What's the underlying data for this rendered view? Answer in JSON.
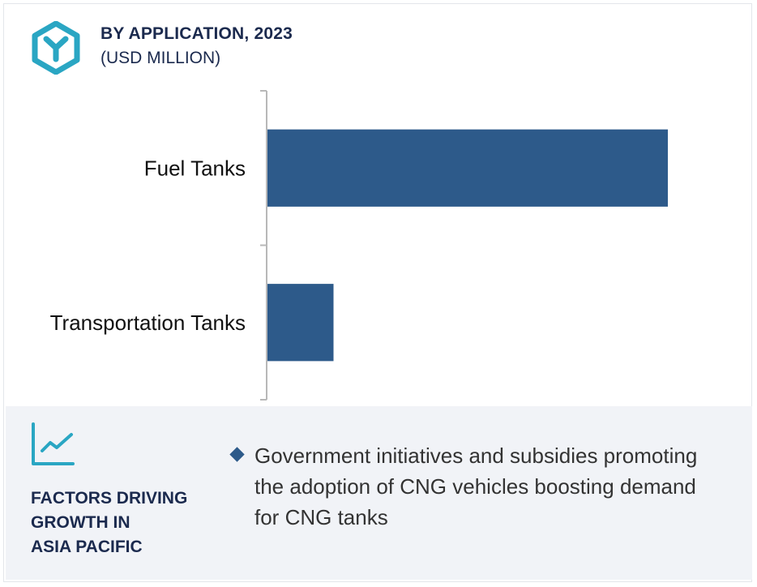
{
  "header": {
    "title": "BY APPLICATION, 2023",
    "subtitle": "(USD MILLION)",
    "logo_icon": "hexagon-y-logo-icon",
    "accent_color": "#2aa6c3"
  },
  "chart_data": {
    "type": "bar",
    "orientation": "horizontal",
    "categories": [
      "Fuel Tanks",
      "Transportation Tanks"
    ],
    "values": [
      6,
      1
    ],
    "title": "BY APPLICATION, 2023",
    "subtitle": "(USD MILLION)",
    "xlabel": "",
    "ylabel": "",
    "xlim": [
      0,
      6
    ],
    "bar_color": "#2d5a8a",
    "grid": false,
    "legend": "none"
  },
  "factors": {
    "icon": "trend-line-icon",
    "heading_lines": [
      "FACTORS DRIVING",
      "GROWTH IN",
      "ASIA PACIFIC"
    ],
    "bullets": [
      "Government initiatives and subsidies promoting the adoption of CNG vehicles boosting demand for CNG tanks"
    ]
  }
}
